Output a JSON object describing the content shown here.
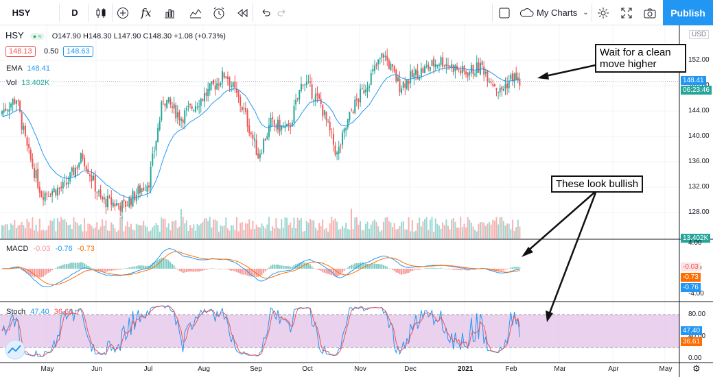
{
  "toolbar": {
    "symbol": "HSY",
    "interval": "D",
    "fx_label": "fx",
    "layout_label": "My Charts",
    "publish_label": "Publish"
  },
  "legend": {
    "symbol": "HSY",
    "ohlc": "O147.90  H148.30  L147.90  C148.30  +1.08 (+0.73%)",
    "bid": "148.13",
    "spread": "0.50",
    "ask": "148.63",
    "ema_label": "EMA",
    "ema_value": "148.41",
    "vol_label": "Vol",
    "vol_value": "13.402K",
    "macd_label": "MACD",
    "macd_v1": "-0.03",
    "macd_v2": "-0.76",
    "macd_v3": "-0.73",
    "stoch_label": "Stoch",
    "stoch_k": "47.40",
    "stoch_d": "36.61"
  },
  "price_axis": {
    "currency": "USD",
    "ticks": [
      "152.00",
      "148.00",
      "144.00",
      "140.00",
      "136.00",
      "132.00",
      "128.00"
    ],
    "tag_ema": "148.41",
    "tag_time": "06:23:46",
    "tag_vol": "13.402K"
  },
  "macd_axis": {
    "ticks": [
      "4.00",
      "0.00",
      "-4.00"
    ],
    "tags": [
      "-0.03",
      "-0.73",
      "-0.76"
    ]
  },
  "stoch_axis": {
    "ticks": [
      "80.00",
      "40.00",
      "0.00"
    ],
    "tags": [
      "47.40",
      "36.61"
    ]
  },
  "time_axis": [
    "May",
    "Jun",
    "Jul",
    "Aug",
    "Sep",
    "Oct",
    "Nov",
    "Dec",
    "2021",
    "Feb",
    "Mar",
    "Apr",
    "May"
  ],
  "annotations": {
    "callout_top": "Wait for a clean move higher",
    "callout_bottom": "These look bullish"
  },
  "colors": {
    "up": "#26a69a",
    "down": "#ef5350",
    "ema": "#2196f3",
    "accent": "#2196f3",
    "stoch_band": "#e1bee7"
  },
  "chart_data": {
    "type": "candlestick",
    "symbol": "HSY",
    "last_close": 148.3,
    "ema": 148.41,
    "ylim": [
      124,
      156
    ],
    "x": [
      "May",
      "Jun",
      "Jul",
      "Aug",
      "Sep",
      "Oct",
      "Nov",
      "Dec",
      "2021",
      "Feb"
    ],
    "close_approx": [
      144,
      131,
      130,
      146,
      147,
      141,
      141,
      150,
      151,
      148.3
    ],
    "macd": {
      "macd": -0.76,
      "signal": -0.73,
      "hist": -0.03
    },
    "stoch": {
      "k": 47.4,
      "d": 36.61,
      "bands": [
        20,
        80
      ]
    }
  }
}
